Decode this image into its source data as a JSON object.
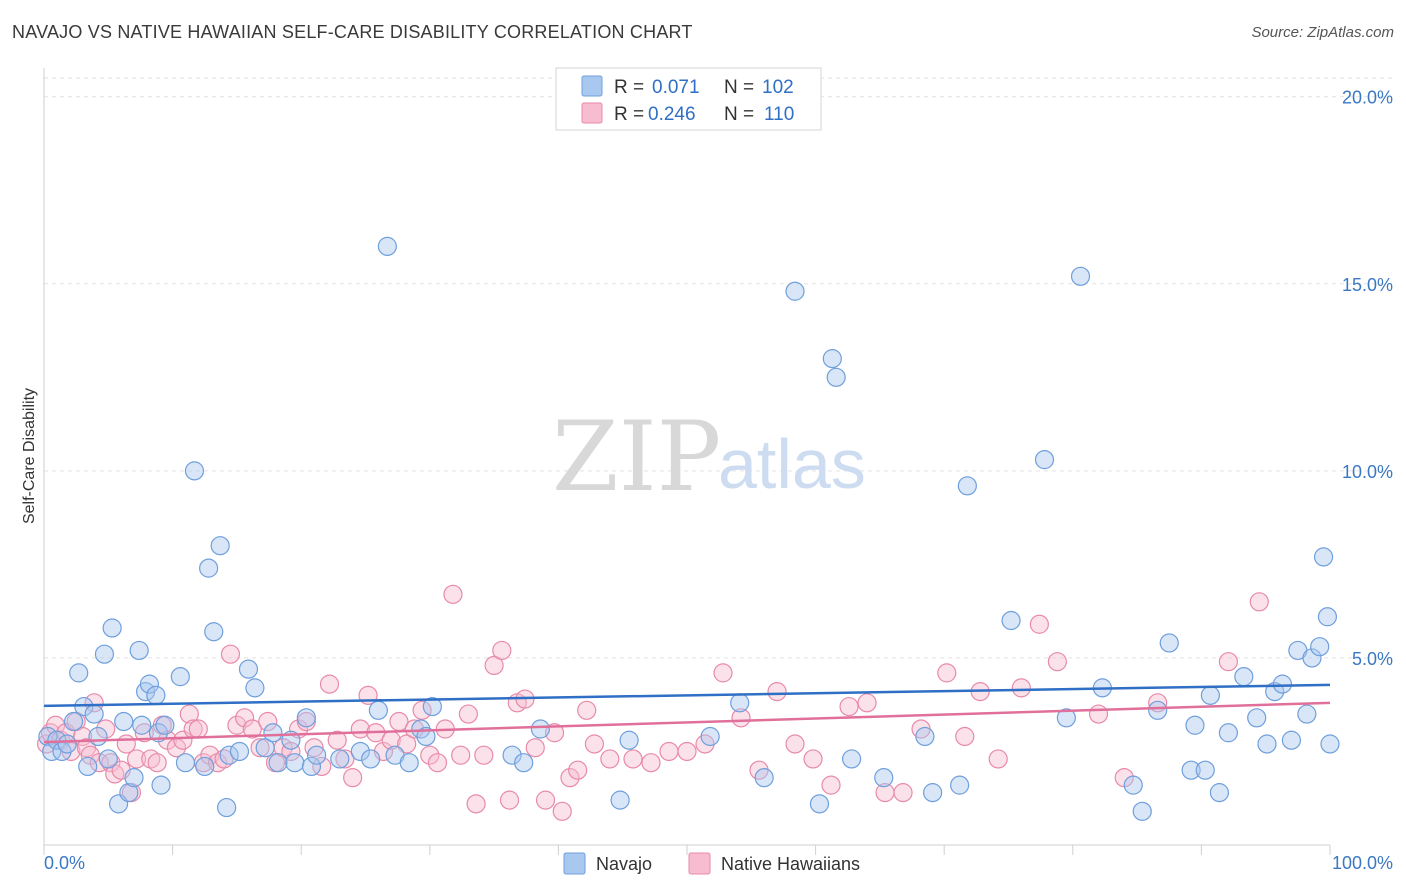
{
  "header": {
    "title": "NAVAJO VS NATIVE HAWAIIAN SELF-CARE DISABILITY CORRELATION CHART",
    "source": "Source: ZipAtlas.com"
  },
  "watermark": {
    "zip": "ZIP",
    "atlas": "atlas"
  },
  "legend": {
    "r_label": "R =",
    "n_label": "N =",
    "rows": [
      {
        "r": "0.071",
        "n": "102"
      },
      {
        "r": "0.246",
        "n": "110"
      }
    ]
  },
  "chart_data": {
    "type": "scatter",
    "title": "NAVAJO VS NATIVE HAWAIIAN SELF-CARE DISABILITY CORRELATION CHART",
    "xlabel": "",
    "ylabel": "Self-Care Disability",
    "xlim": [
      0,
      100
    ],
    "ylim": [
      0,
      20.5
    ],
    "x_tick_labels": [
      "0.0%",
      "100.0%"
    ],
    "y_ticks": [
      5,
      10,
      15,
      20
    ],
    "y_tick_labels": [
      "5.0%",
      "10.0%",
      "15.0%",
      "20.0%"
    ],
    "grid": true,
    "legend_position": "top-center",
    "colors": {
      "navajo_fill": "#a9c8f0",
      "navajo_stroke": "#6f9fdc",
      "navajo_line": "#2f6fc6",
      "hawaiian_fill": "#f7bcd0",
      "hawaiian_stroke": "#e88aaa",
      "hawaiian_line": "#e0709a"
    },
    "series": [
      {
        "name": "Navajo",
        "trend": {
          "x": [
            0,
            100
          ],
          "y": [
            3.72,
            4.28
          ]
        },
        "points": [
          [
            0.3,
            2.9
          ],
          [
            0.6,
            2.5
          ],
          [
            1.0,
            2.8
          ],
          [
            1.4,
            2.5
          ],
          [
            1.8,
            2.7
          ],
          [
            2.3,
            3.3
          ],
          [
            2.7,
            4.6
          ],
          [
            3.1,
            3.7
          ],
          [
            3.4,
            2.1
          ],
          [
            3.9,
            3.5
          ],
          [
            4.2,
            2.9
          ],
          [
            4.7,
            5.1
          ],
          [
            5.0,
            2.3
          ],
          [
            5.3,
            5.8
          ],
          [
            5.8,
            1.1
          ],
          [
            6.2,
            3.3
          ],
          [
            6.6,
            1.4
          ],
          [
            7.0,
            1.8
          ],
          [
            7.4,
            5.2
          ],
          [
            7.6,
            3.2
          ],
          [
            7.9,
            4.1
          ],
          [
            8.2,
            4.3
          ],
          [
            8.7,
            4.0
          ],
          [
            8.9,
            3.0
          ],
          [
            9.1,
            1.6
          ],
          [
            9.4,
            3.2
          ],
          [
            10.6,
            4.5
          ],
          [
            11.7,
            10.0
          ],
          [
            11.0,
            2.2
          ],
          [
            12.5,
            2.1
          ],
          [
            13.2,
            5.7
          ],
          [
            13.7,
            8.0
          ],
          [
            12.8,
            7.4
          ],
          [
            14.2,
            1.0
          ],
          [
            14.4,
            2.4
          ],
          [
            15.2,
            2.5
          ],
          [
            15.9,
            4.7
          ],
          [
            16.4,
            4.2
          ],
          [
            17.2,
            2.6
          ],
          [
            17.8,
            3.0
          ],
          [
            18.2,
            2.2
          ],
          [
            26.7,
            16.0
          ],
          [
            19.2,
            2.8
          ],
          [
            19.5,
            2.2
          ],
          [
            20.4,
            3.4
          ],
          [
            20.8,
            2.1
          ],
          [
            21.2,
            2.4
          ],
          [
            23.0,
            2.3
          ],
          [
            24.6,
            2.5
          ],
          [
            25.4,
            2.3
          ],
          [
            26.0,
            3.6
          ],
          [
            27.3,
            2.4
          ],
          [
            28.4,
            2.2
          ],
          [
            29.3,
            3.1
          ],
          [
            29.7,
            2.9
          ],
          [
            30.2,
            3.7
          ],
          [
            36.4,
            2.4
          ],
          [
            37.3,
            2.2
          ],
          [
            38.6,
            3.1
          ],
          [
            45.5,
            2.8
          ],
          [
            51.8,
            2.9
          ],
          [
            54.1,
            3.8
          ],
          [
            56.0,
            1.8
          ],
          [
            58.4,
            14.8
          ],
          [
            60.3,
            1.1
          ],
          [
            61.3,
            13.0
          ],
          [
            61.6,
            12.5
          ],
          [
            62.8,
            2.3
          ],
          [
            65.3,
            1.8
          ],
          [
            68.5,
            2.9
          ],
          [
            69.1,
            1.4
          ],
          [
            71.2,
            1.6
          ],
          [
            71.8,
            9.6
          ],
          [
            75.2,
            6.0
          ],
          [
            77.8,
            10.3
          ],
          [
            79.5,
            3.4
          ],
          [
            80.6,
            15.2
          ],
          [
            82.3,
            4.2
          ],
          [
            84.7,
            1.6
          ],
          [
            85.4,
            0.9
          ],
          [
            86.6,
            3.6
          ],
          [
            87.5,
            5.4
          ],
          [
            89.2,
            2.0
          ],
          [
            89.5,
            3.2
          ],
          [
            90.3,
            2.0
          ],
          [
            91.4,
            1.4
          ],
          [
            92.1,
            3.0
          ],
          [
            93.3,
            4.5
          ],
          [
            94.3,
            3.4
          ],
          [
            95.1,
            2.7
          ],
          [
            95.7,
            4.1
          ],
          [
            96.3,
            4.3
          ],
          [
            97.0,
            2.8
          ],
          [
            97.5,
            5.2
          ],
          [
            98.2,
            3.5
          ],
          [
            98.6,
            5.0
          ],
          [
            99.5,
            7.7
          ],
          [
            99.8,
            6.1
          ],
          [
            100.0,
            2.7
          ],
          [
            99.2,
            5.3
          ],
          [
            44.8,
            1.2
          ],
          [
            90.7,
            4.0
          ]
        ]
      },
      {
        "name": "Native Hawaiians",
        "trend": {
          "x": [
            0,
            100
          ],
          "y": [
            2.75,
            3.8
          ]
        },
        "points": [
          [
            0.2,
            2.7
          ],
          [
            0.5,
            3.0
          ],
          [
            0.9,
            3.2
          ],
          [
            1.3,
            2.8
          ],
          [
            1.7,
            3.0
          ],
          [
            2.1,
            2.5
          ],
          [
            2.5,
            3.3
          ],
          [
            3.0,
            2.9
          ],
          [
            3.3,
            2.6
          ],
          [
            3.6,
            2.4
          ],
          [
            3.9,
            3.8
          ],
          [
            4.3,
            2.2
          ],
          [
            4.8,
            3.1
          ],
          [
            5.2,
            2.2
          ],
          [
            5.5,
            1.9
          ],
          [
            6.0,
            2.0
          ],
          [
            6.4,
            2.7
          ],
          [
            6.8,
            1.4
          ],
          [
            7.2,
            2.3
          ],
          [
            7.8,
            3.0
          ],
          [
            8.3,
            2.3
          ],
          [
            8.8,
            2.2
          ],
          [
            9.2,
            3.2
          ],
          [
            9.6,
            2.8
          ],
          [
            10.3,
            2.6
          ],
          [
            10.8,
            2.8
          ],
          [
            11.3,
            3.5
          ],
          [
            11.6,
            3.1
          ],
          [
            12.0,
            3.1
          ],
          [
            12.4,
            2.2
          ],
          [
            12.9,
            2.4
          ],
          [
            13.5,
            2.2
          ],
          [
            14.0,
            2.3
          ],
          [
            14.5,
            5.1
          ],
          [
            15.0,
            3.2
          ],
          [
            15.6,
            3.4
          ],
          [
            16.2,
            3.1
          ],
          [
            16.8,
            2.6
          ],
          [
            17.4,
            3.3
          ],
          [
            18.0,
            2.2
          ],
          [
            18.6,
            2.6
          ],
          [
            19.2,
            2.5
          ],
          [
            19.8,
            3.1
          ],
          [
            20.4,
            3.3
          ],
          [
            21.0,
            2.6
          ],
          [
            21.6,
            2.1
          ],
          [
            22.2,
            4.3
          ],
          [
            22.8,
            2.8
          ],
          [
            23.4,
            2.3
          ],
          [
            24.0,
            1.8
          ],
          [
            24.6,
            3.1
          ],
          [
            25.2,
            4.0
          ],
          [
            25.8,
            3.0
          ],
          [
            26.4,
            2.5
          ],
          [
            27.0,
            2.8
          ],
          [
            27.6,
            3.3
          ],
          [
            28.2,
            2.7
          ],
          [
            28.8,
            3.1
          ],
          [
            29.4,
            3.6
          ],
          [
            30.0,
            2.4
          ],
          [
            30.6,
            2.2
          ],
          [
            31.2,
            3.1
          ],
          [
            31.8,
            6.7
          ],
          [
            32.4,
            2.4
          ],
          [
            33.0,
            3.5
          ],
          [
            33.6,
            1.1
          ],
          [
            34.2,
            2.4
          ],
          [
            35.0,
            4.8
          ],
          [
            35.6,
            5.2
          ],
          [
            36.2,
            1.2
          ],
          [
            36.8,
            3.8
          ],
          [
            37.4,
            3.9
          ],
          [
            38.2,
            2.6
          ],
          [
            39.0,
            1.2
          ],
          [
            39.7,
            3.0
          ],
          [
            40.3,
            0.9
          ],
          [
            40.9,
            1.8
          ],
          [
            41.5,
            2.0
          ],
          [
            42.2,
            3.6
          ],
          [
            42.8,
            2.7
          ],
          [
            44.0,
            2.3
          ],
          [
            45.8,
            2.3
          ],
          [
            47.2,
            2.2
          ],
          [
            48.6,
            2.5
          ],
          [
            50.0,
            2.5
          ],
          [
            51.4,
            2.7
          ],
          [
            52.8,
            4.6
          ],
          [
            54.2,
            3.4
          ],
          [
            55.6,
            2.0
          ],
          [
            57.0,
            4.1
          ],
          [
            58.4,
            2.7
          ],
          [
            59.8,
            2.3
          ],
          [
            61.2,
            1.6
          ],
          [
            62.6,
            3.7
          ],
          [
            64.0,
            3.8
          ],
          [
            65.4,
            1.4
          ],
          [
            66.8,
            1.4
          ],
          [
            68.2,
            3.1
          ],
          [
            70.2,
            4.6
          ],
          [
            71.6,
            2.9
          ],
          [
            72.8,
            4.1
          ],
          [
            74.2,
            2.3
          ],
          [
            76.0,
            4.2
          ],
          [
            77.4,
            5.9
          ],
          [
            78.8,
            4.9
          ],
          [
            82.0,
            3.5
          ],
          [
            84.0,
            1.8
          ],
          [
            86.6,
            3.8
          ],
          [
            92.1,
            4.9
          ],
          [
            94.5,
            6.5
          ]
        ]
      }
    ]
  }
}
